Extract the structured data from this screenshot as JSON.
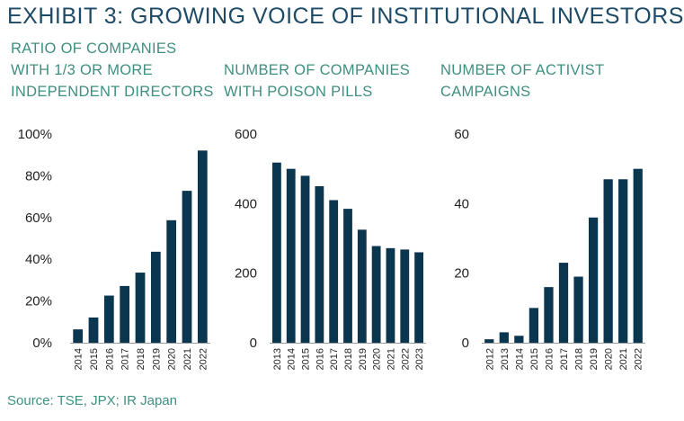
{
  "header": {
    "title": "EXHIBIT 3: GROWING VOICE OF INSTITUTIONAL INVESTORS"
  },
  "source": "Source: TSE, JPX; IR Japan",
  "colors": {
    "bar": "#0b3650",
    "title": "#1d4a66",
    "subtitle": "#3f8f80",
    "axis": "#9a9a9a",
    "text": "#222222"
  },
  "chart_data": [
    {
      "type": "bar",
      "title_lines": [
        "RATIO OF COMPANIES",
        "WITH 1/3 OR MORE",
        "INDEPENDENT DIRECTORS"
      ],
      "categories": [
        "2014",
        "2015",
        "2016",
        "2017",
        "2018",
        "2019",
        "2020",
        "2021",
        "2022"
      ],
      "values": [
        6.4,
        12.1,
        22.6,
        27.2,
        33.6,
        43.6,
        58.7,
        72.8,
        92.1
      ],
      "ylim": [
        0,
        100
      ],
      "yticks": [
        0,
        20,
        40,
        60,
        80,
        100
      ],
      "ytick_labels": [
        "0%",
        "20%",
        "40%",
        "60%",
        "80%",
        "100%"
      ]
    },
    {
      "type": "bar",
      "title_lines": [
        "NUMBER OF COMPANIES",
        "WITH POISON PILLS"
      ],
      "categories": [
        "2013",
        "2014",
        "2015",
        "2016",
        "2017",
        "2018",
        "2019",
        "2020",
        "2021",
        "2022",
        "2023"
      ],
      "values": [
        518,
        500,
        480,
        450,
        410,
        385,
        325,
        278,
        272,
        268,
        260
      ],
      "ylim": [
        0,
        600
      ],
      "yticks": [
        0,
        200,
        400,
        600
      ],
      "ytick_labels": [
        "0",
        "200",
        "400",
        "600"
      ]
    },
    {
      "type": "bar",
      "title_lines": [
        "NUMBER OF ACTIVIST",
        "CAMPAIGNS"
      ],
      "categories": [
        "2012",
        "2013",
        "2014",
        "2015",
        "2016",
        "2017",
        "2018",
        "2019",
        "2020",
        "2021",
        "2022"
      ],
      "values": [
        1,
        3,
        2,
        10,
        16,
        23,
        19,
        36,
        47,
        47,
        50
      ],
      "ylim": [
        0,
        60
      ],
      "yticks": [
        0,
        20,
        40,
        60
      ],
      "ytick_labels": [
        "0",
        "20",
        "40",
        "60"
      ]
    }
  ]
}
